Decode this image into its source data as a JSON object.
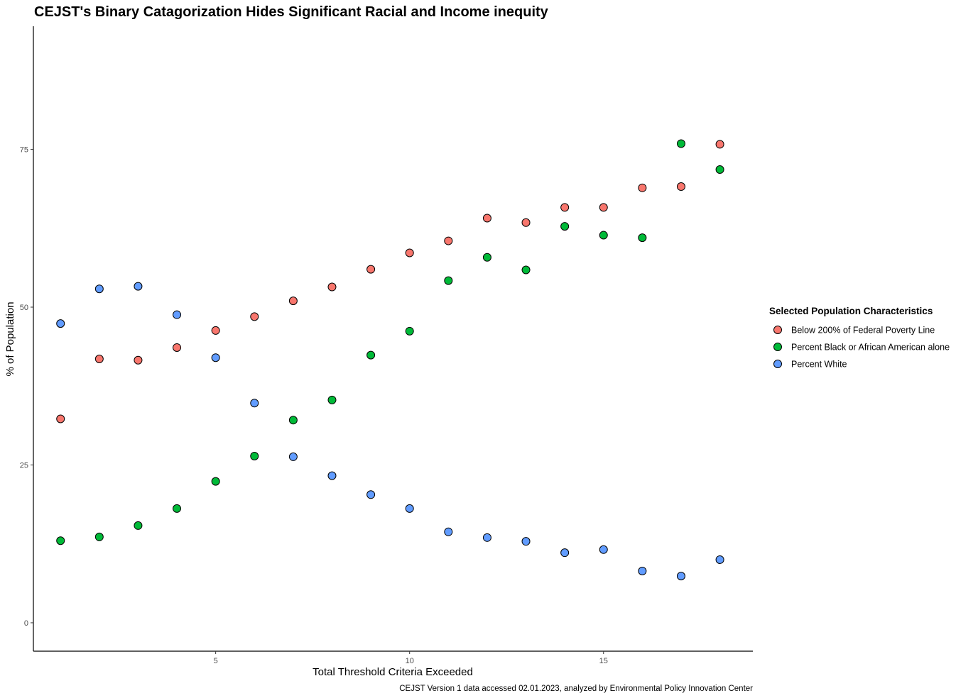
{
  "chart_data": {
    "type": "scatter",
    "title": "CEJST's Binary Catagorization Hides Significant Racial and Income inequity",
    "xlabel": "Total Threshold Criteria Exceeded",
    "ylabel": "% of Population",
    "caption": "CEJST Version 1 data accessed 02.01.2023, analyzed by Environmental Policy Innovation Center",
    "xlim": [
      0.3,
      18.85
    ],
    "ylim": [
      -4.5,
      94.5
    ],
    "x_ticks": [
      5,
      10,
      15
    ],
    "y_ticks": [
      0,
      25,
      50,
      75
    ],
    "grid": false,
    "legend": {
      "title": "Selected Population Characteristics",
      "position": "right"
    },
    "x": [
      1,
      2,
      3,
      4,
      5,
      6,
      7,
      8,
      9,
      10,
      11,
      12,
      13,
      14,
      15,
      16,
      17,
      18
    ],
    "series": [
      {
        "name": "Below 200% of Federal Poverty Line",
        "color": "#F8766D",
        "values": [
          32.3,
          41.8,
          41.6,
          43.6,
          46.3,
          48.5,
          51.0,
          53.2,
          56.0,
          58.6,
          60.5,
          64.1,
          63.4,
          65.8,
          65.8,
          68.9,
          69.1,
          75.8
        ]
      },
      {
        "name": "Percent Black or African American alone",
        "color": "#00BA38",
        "values": [
          13.0,
          13.6,
          15.4,
          18.1,
          22.4,
          26.4,
          32.1,
          35.3,
          42.4,
          46.2,
          54.2,
          57.9,
          55.9,
          62.8,
          61.4,
          61.0,
          75.9,
          71.8
        ]
      },
      {
        "name": "Percent White",
        "color": "#619CFF",
        "values": [
          47.4,
          52.9,
          53.3,
          48.8,
          42.0,
          34.8,
          26.3,
          23.3,
          20.3,
          18.1,
          14.4,
          13.5,
          12.9,
          11.1,
          11.6,
          8.2,
          7.4,
          10.0
        ]
      }
    ]
  }
}
